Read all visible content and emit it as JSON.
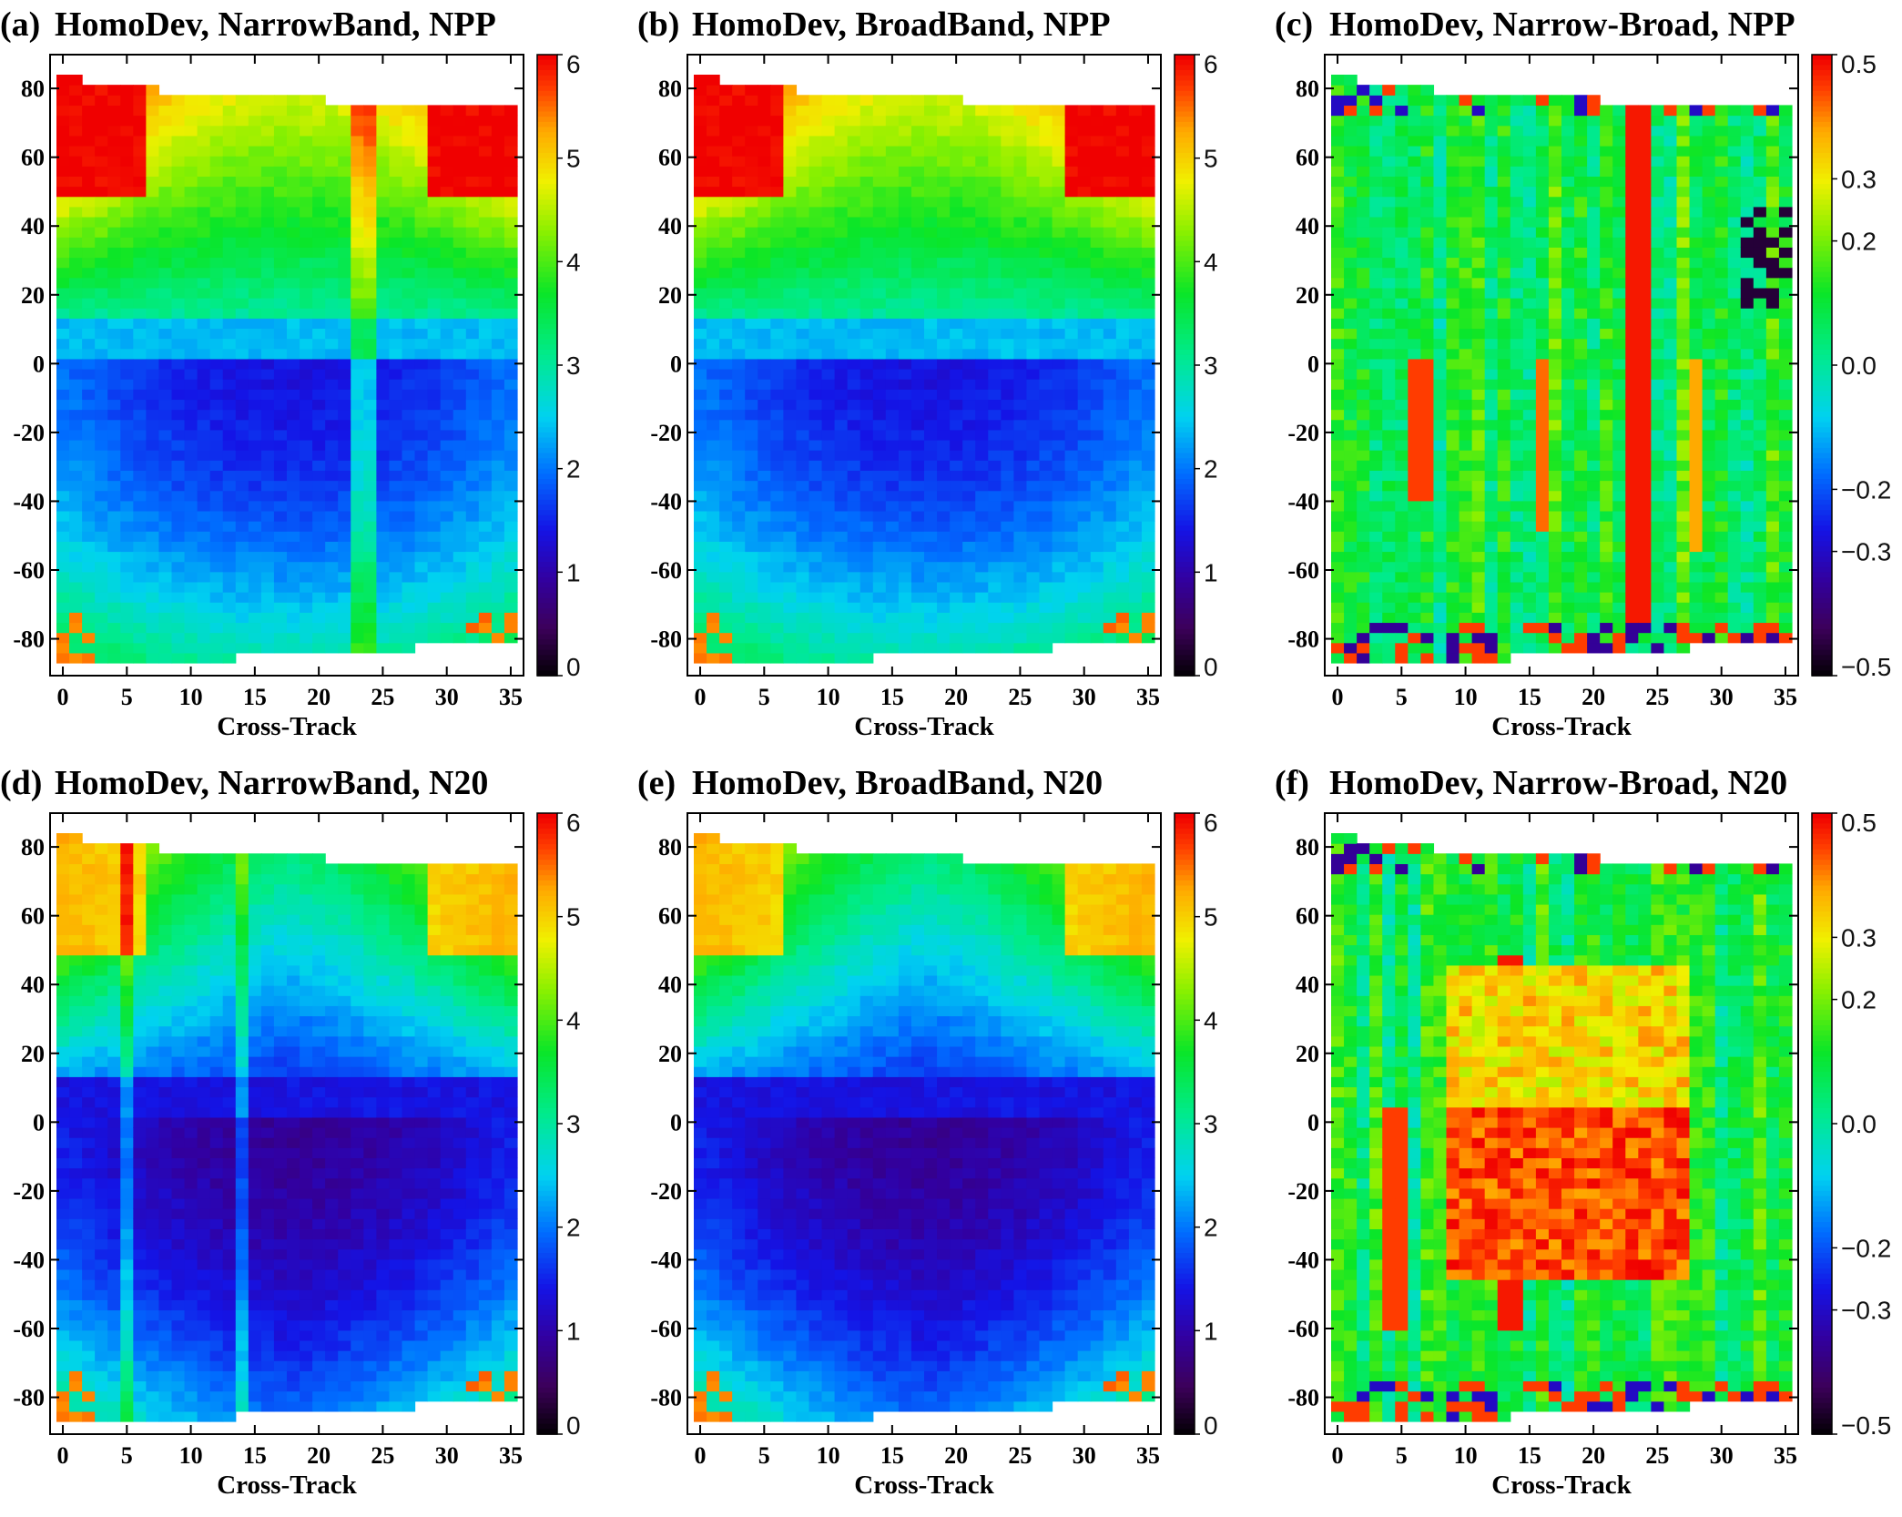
{
  "figure": {
    "panels": [
      {
        "id": "a",
        "label": "(a)",
        "title": "HomoDev, NarrowBand, NPP",
        "xlabel": "Cross-Track"
      },
      {
        "id": "b",
        "label": "(b)",
        "title": "HomoDev, BroadBand, NPP",
        "xlabel": "Cross-Track"
      },
      {
        "id": "c",
        "label": "(c)",
        "title": "HomoDev, Narrow-Broad, NPP",
        "xlabel": "Cross-Track"
      },
      {
        "id": "d",
        "label": "(d)",
        "title": "HomoDev, NarrowBand, N20",
        "xlabel": "Cross-Track"
      },
      {
        "id": "e",
        "label": "(e)",
        "title": "HomoDev, BroadBand, N20",
        "xlabel": "Cross-Track"
      },
      {
        "id": "f",
        "label": "(f)",
        "title": "HomoDev, Narrow-Broad, N20",
        "xlabel": "Cross-Track"
      }
    ]
  },
  "chart_data": [
    {
      "id": "a",
      "type": "heatmap",
      "title": "HomoDev, NarrowBand, NPP",
      "xlabel": "Cross-Track",
      "ylabel": "",
      "x": {
        "min": 0,
        "max": 35,
        "ticks": [
          "0",
          "5",
          "10",
          "15",
          "20",
          "25",
          "30",
          "35"
        ]
      },
      "y": {
        "min": -87,
        "max": 84,
        "ticks": [
          "-80",
          "-60",
          "-40",
          "-20",
          "0",
          "20",
          "40",
          "60",
          "80"
        ]
      },
      "colorbar": {
        "min": 0,
        "max": 6,
        "ticks": [
          "0",
          "1",
          "2",
          "3",
          "4",
          "5",
          "6"
        ],
        "colormap": "rainbow"
      },
      "variant": "narrow",
      "satellite": "NPP"
    },
    {
      "id": "b",
      "type": "heatmap",
      "title": "HomoDev, BroadBand, NPP",
      "xlabel": "Cross-Track",
      "ylabel": "",
      "x": {
        "min": 0,
        "max": 35,
        "ticks": [
          "0",
          "5",
          "10",
          "15",
          "20",
          "25",
          "30",
          "35"
        ]
      },
      "y": {
        "min": -87,
        "max": 84,
        "ticks": [
          "-80",
          "-60",
          "-40",
          "-20",
          "0",
          "20",
          "40",
          "60",
          "80"
        ]
      },
      "colorbar": {
        "min": 0,
        "max": 6,
        "ticks": [
          "0",
          "1",
          "2",
          "3",
          "4",
          "5",
          "6"
        ],
        "colormap": "rainbow"
      },
      "variant": "broad",
      "satellite": "NPP"
    },
    {
      "id": "c",
      "type": "heatmap",
      "title": "HomoDev, Narrow-Broad, NPP",
      "xlabel": "Cross-Track",
      "ylabel": "",
      "x": {
        "min": 0,
        "max": 35,
        "ticks": [
          "0",
          "5",
          "10",
          "15",
          "20",
          "25",
          "30",
          "35"
        ]
      },
      "y": {
        "min": -87,
        "max": 84,
        "ticks": [
          "-80",
          "-60",
          "-40",
          "-20",
          "0",
          "20",
          "40",
          "60",
          "80"
        ]
      },
      "colorbar": {
        "min": -0.5,
        "max": 0.5,
        "ticks": [
          "−0.5",
          "−0.3",
          "−0.2",
          "0.0",
          "0.2",
          "0.3",
          "0.5"
        ],
        "colormap": "rainbow"
      },
      "variant": "diff",
      "satellite": "NPP"
    },
    {
      "id": "d",
      "type": "heatmap",
      "title": "HomoDev, NarrowBand, N20",
      "xlabel": "Cross-Track",
      "ylabel": "",
      "x": {
        "min": 0,
        "max": 35,
        "ticks": [
          "0",
          "5",
          "10",
          "15",
          "20",
          "25",
          "30",
          "35"
        ]
      },
      "y": {
        "min": -87,
        "max": 84,
        "ticks": [
          "-80",
          "-60",
          "-40",
          "-20",
          "0",
          "20",
          "40",
          "60",
          "80"
        ]
      },
      "colorbar": {
        "min": 0,
        "max": 6,
        "ticks": [
          "0",
          "1",
          "2",
          "3",
          "4",
          "5",
          "6"
        ],
        "colormap": "rainbow"
      },
      "variant": "narrow",
      "satellite": "N20"
    },
    {
      "id": "e",
      "type": "heatmap",
      "title": "HomoDev, BroadBand, N20",
      "xlabel": "Cross-Track",
      "ylabel": "",
      "x": {
        "min": 0,
        "max": 35,
        "ticks": [
          "0",
          "5",
          "10",
          "15",
          "20",
          "25",
          "30",
          "35"
        ]
      },
      "y": {
        "min": -87,
        "max": 84,
        "ticks": [
          "-80",
          "-60",
          "-40",
          "-20",
          "0",
          "20",
          "40",
          "60",
          "80"
        ]
      },
      "colorbar": {
        "min": 0,
        "max": 6,
        "ticks": [
          "0",
          "1",
          "2",
          "3",
          "4",
          "5",
          "6"
        ],
        "colormap": "rainbow"
      },
      "variant": "broad",
      "satellite": "N20"
    },
    {
      "id": "f",
      "type": "heatmap",
      "title": "HomoDev, Narrow-Broad, N20",
      "xlabel": "Cross-Track",
      "ylabel": "",
      "x": {
        "min": 0,
        "max": 35,
        "ticks": [
          "0",
          "5",
          "10",
          "15",
          "20",
          "25",
          "30",
          "35"
        ]
      },
      "y": {
        "min": -87,
        "max": 84,
        "ticks": [
          "-80",
          "-60",
          "-40",
          "-20",
          "0",
          "20",
          "40",
          "60",
          "80"
        ]
      },
      "colorbar": {
        "min": -0.5,
        "max": 0.5,
        "ticks": [
          "−0.5",
          "−0.3",
          "−0.2",
          "0.0",
          "0.2",
          "0.3",
          "0.5"
        ],
        "colormap": "rainbow"
      },
      "variant": "diff",
      "satellite": "N20"
    }
  ]
}
